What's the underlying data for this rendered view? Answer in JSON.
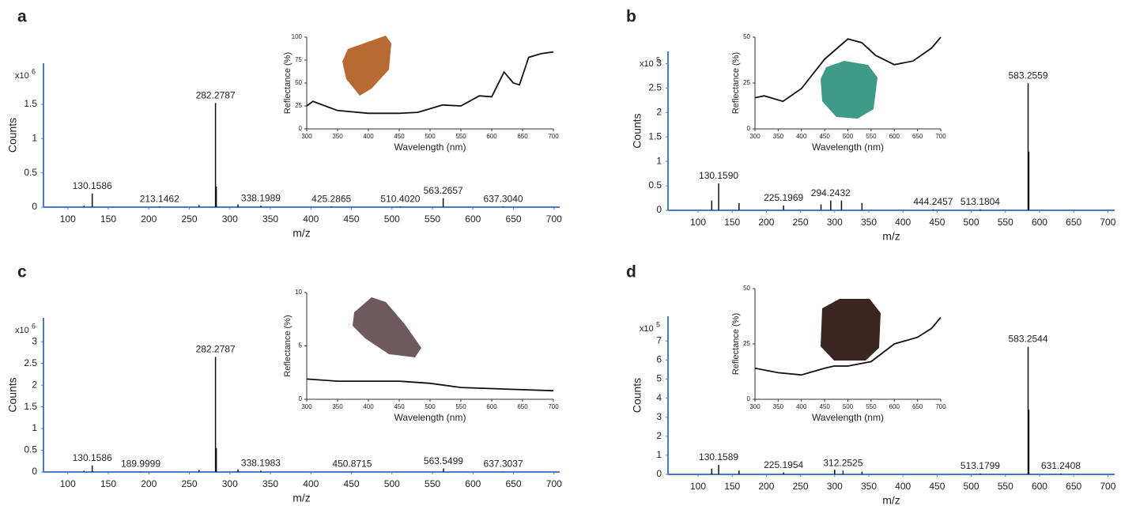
{
  "chart_data": [
    {
      "type": "bar",
      "panel": "a",
      "ylabel": "Counts",
      "xlabel": "m/z",
      "y_scale": "x10",
      "y_exponent": "6",
      "color": "#111111",
      "axis_color": "#4a7cc4",
      "xlim": [
        70,
        707
      ],
      "xticks": [
        100,
        150,
        200,
        250,
        300,
        350,
        400,
        450,
        500,
        550,
        600,
        650,
        700
      ],
      "ylim": [
        0,
        2.1
      ],
      "yticks": [
        0,
        0.5,
        1,
        1.5
      ],
      "x": [
        120,
        130.1586,
        213.1462,
        262,
        282.2787,
        283.28,
        310,
        338.1989,
        425.2865,
        510.402,
        563.2657,
        637.304
      ],
      "values": [
        0.02,
        0.2,
        0.01,
        0.03,
        1.52,
        0.3,
        0.04,
        0.02,
        0.01,
        0.01,
        0.13,
        0.01
      ],
      "x_labels": [
        null,
        "130.1586",
        "213.1462",
        null,
        "282.2787",
        null,
        null,
        "338.1989",
        "425.2865",
        "510.4020",
        "563.2657",
        "637.3040"
      ]
    },
    {
      "type": "line",
      "xlabel": "Wavelength (nm)",
      "ylabel": "Reflectance (%)",
      "color": "#111111",
      "xlim": [
        300,
        700
      ],
      "xticks": [
        300,
        350,
        400,
        450,
        500,
        550,
        600,
        650,
        700
      ],
      "ylim": [
        0,
        100
      ],
      "yticks": [
        0,
        25,
        50,
        75,
        100
      ],
      "x": [
        300,
        310,
        330,
        350,
        400,
        450,
        480,
        500,
        520,
        550,
        580,
        600,
        620,
        635,
        645,
        660,
        680,
        700
      ],
      "values": [
        25,
        30,
        25,
        20,
        17,
        17,
        18,
        22,
        26,
        25,
        36,
        35,
        62,
        50,
        48,
        78,
        82,
        84
      ]
    },
    {
      "type": "bar",
      "panel": "b",
      "ylabel": "Counts",
      "xlabel": "m/z",
      "y_scale": "x10",
      "y_exponent": "5",
      "color": "#111111",
      "axis_color": "#4a7cc4",
      "xlim": [
        56,
        710
      ],
      "xticks": [
        100,
        150,
        200,
        250,
        300,
        350,
        400,
        450,
        500,
        550,
        600,
        650,
        700
      ],
      "ylim": [
        0,
        3.25
      ],
      "yticks": [
        0,
        0.5,
        1,
        1.5,
        2,
        2.5,
        3
      ],
      "x": [
        120,
        130.159,
        160,
        225.1969,
        280,
        294.2432,
        310,
        340,
        444.2457,
        513.1804,
        583.2559,
        584.26
      ],
      "values": [
        0.2,
        0.55,
        0.15,
        0.1,
        0.12,
        0.2,
        0.2,
        0.15,
        0.02,
        0.02,
        2.6,
        1.2
      ],
      "x_labels": [
        null,
        "130.1590",
        null,
        "225.1969",
        null,
        "294.2432",
        null,
        null,
        "444.2457",
        "513.1804",
        "583.2559",
        null
      ]
    },
    {
      "type": "line",
      "xlabel": "Wavelength (nm)",
      "ylabel": "Reflectance (%)",
      "color": "#111111",
      "xlim": [
        300,
        700
      ],
      "xticks": [
        300,
        350,
        400,
        450,
        500,
        550,
        600,
        650,
        700
      ],
      "ylim": [
        0,
        50
      ],
      "yticks": [
        0,
        25,
        50
      ],
      "x": [
        300,
        320,
        360,
        400,
        450,
        500,
        530,
        560,
        600,
        640,
        680,
        700
      ],
      "values": [
        17,
        18,
        15,
        22,
        38,
        49,
        47,
        40,
        35,
        37,
        44,
        50
      ]
    },
    {
      "type": "bar",
      "panel": "c",
      "ylabel": "Counts",
      "xlabel": "m/z",
      "y_scale": "x10",
      "y_exponent": "6",
      "color": "#111111",
      "axis_color": "#4a7cc4",
      "xlim": [
        70,
        707
      ],
      "xticks": [
        100,
        150,
        200,
        250,
        300,
        350,
        400,
        450,
        500,
        550,
        600,
        650,
        700
      ],
      "ylim": [
        0,
        3.55
      ],
      "yticks": [
        0,
        0.5,
        1,
        1.5,
        2,
        2.5,
        3
      ],
      "x": [
        120,
        130.1586,
        189.9999,
        262,
        282.2787,
        283.28,
        310,
        338.1983,
        450.8715,
        563.5499,
        637.3037
      ],
      "values": [
        0.03,
        0.15,
        0.01,
        0.05,
        2.65,
        0.55,
        0.06,
        0.03,
        0.01,
        0.08,
        0.01
      ],
      "x_labels": [
        null,
        "130.1586",
        "189.9999",
        null,
        "282.2787",
        null,
        null,
        "338.1983",
        "450.8715",
        "563.5499",
        "637.3037"
      ]
    },
    {
      "type": "line",
      "xlabel": "Wavelength (nm)",
      "ylabel": "Reflectance (%)",
      "color": "#111111",
      "xlim": [
        300,
        700
      ],
      "xticks": [
        300,
        350,
        400,
        450,
        500,
        550,
        600,
        650,
        700
      ],
      "ylim": [
        0,
        10
      ],
      "yticks": [
        0,
        5,
        10
      ],
      "x": [
        300,
        350,
        400,
        450,
        500,
        550,
        600,
        650,
        700
      ],
      "values": [
        1.9,
        1.7,
        1.7,
        1.7,
        1.5,
        1.1,
        1.0,
        0.9,
        0.8
      ]
    },
    {
      "type": "bar",
      "panel": "d",
      "ylabel": "Counts",
      "xlabel": "m/z",
      "y_scale": "x10",
      "y_exponent": "5",
      "color": "#111111",
      "axis_color": "#4a7cc4",
      "xlim": [
        56,
        710
      ],
      "xticks": [
        100,
        150,
        200,
        250,
        300,
        350,
        400,
        450,
        500,
        550,
        600,
        650,
        700
      ],
      "ylim": [
        0,
        8.3
      ],
      "yticks": [
        0,
        1,
        2,
        3,
        4,
        5,
        6,
        7
      ],
      "x": [
        120,
        130.1589,
        160,
        225.1954,
        300,
        312.2525,
        340,
        513.1799,
        583.2544,
        584.26,
        631.2408
      ],
      "values": [
        0.3,
        0.5,
        0.2,
        0.1,
        0.25,
        0.2,
        0.15,
        0.05,
        6.7,
        3.4,
        0.05
      ],
      "x_labels": [
        null,
        "130.1589",
        null,
        "225.1954",
        null,
        "312.2525",
        null,
        "513.1799",
        "583.2544",
        null,
        "631.2408"
      ]
    },
    {
      "type": "line",
      "xlabel": "Wavelength (nm)",
      "ylabel": "Reflectance (%)",
      "color": "#111111",
      "xlim": [
        300,
        700
      ],
      "xticks": [
        300,
        350,
        400,
        450,
        500,
        550,
        600,
        650,
        700
      ],
      "ylim": [
        0,
        50
      ],
      "yticks": [
        0,
        25,
        50
      ],
      "x": [
        300,
        350,
        400,
        450,
        470,
        500,
        550,
        600,
        650,
        680,
        700
      ],
      "values": [
        14,
        12,
        11,
        14,
        15,
        15,
        17,
        25,
        28,
        32,
        37
      ]
    }
  ]
}
